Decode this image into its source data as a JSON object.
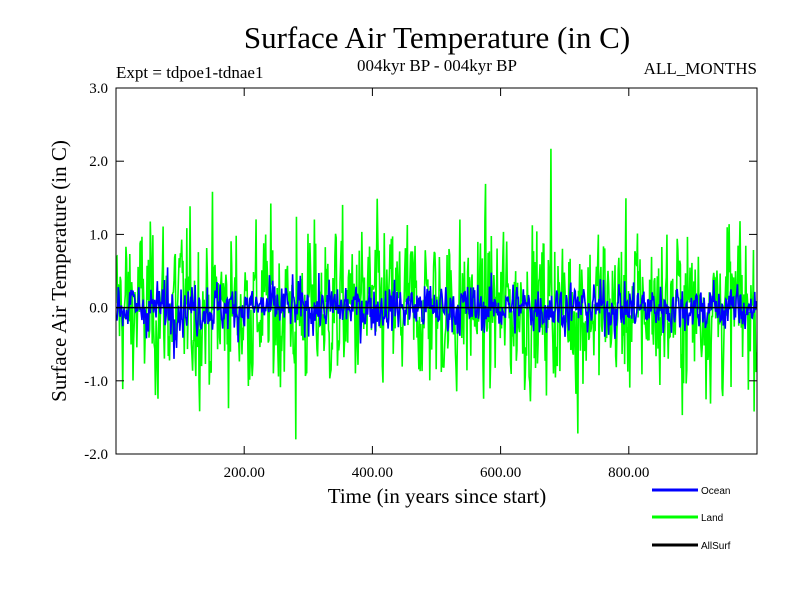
{
  "chart_data": {
    "type": "line",
    "title": "Surface Air Temperature (in C)",
    "subtitle": "004kyr BP - 004kyr BP",
    "expt_label": "Expt = tdpoe1-tdnae1",
    "season_label": "ALL_MONTHS",
    "xlabel": "Time (in years since start)",
    "ylabel": "Surface Air Temperature (in C)",
    "xlim": [
      0,
      1000
    ],
    "ylim": [
      -2.0,
      3.0
    ],
    "x_ticks": [
      200,
      400,
      600,
      800
    ],
    "x_tick_labels": [
      "200.00",
      "400.00",
      "600.00",
      "800.00"
    ],
    "y_ticks": [
      -2.0,
      -1.0,
      0.0,
      1.0,
      2.0,
      3.0
    ],
    "y_tick_labels": [
      "-2.0",
      "-1.0",
      "0.0",
      "1.0",
      "2.0",
      "3.0"
    ],
    "n_years": 1000,
    "series": [
      {
        "name": "Land",
        "color": "#00ff00",
        "approx_std": 0.55,
        "notable_extremes": [
          {
            "x": 678,
            "y": 2.17
          },
          {
            "x": 280,
            "y": -1.8
          },
          {
            "x": 720,
            "y": -1.72
          }
        ]
      },
      {
        "name": "Ocean",
        "color": "#0000ff",
        "approx_std": 0.17,
        "notable_extremes": [
          {
            "x": 80,
            "y": 0.55
          },
          {
            "x": 90,
            "y": -0.7
          }
        ]
      },
      {
        "name": "AllSurf",
        "color": "#000000",
        "approx_std": 0.0
      }
    ],
    "legend": [
      "Ocean",
      "Land",
      "AllSurf"
    ]
  }
}
